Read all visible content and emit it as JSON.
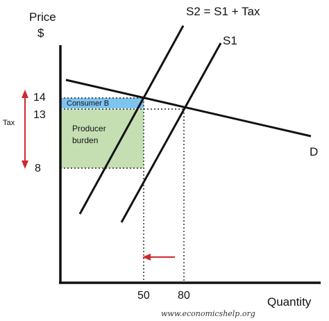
{
  "labels": {
    "y_axis_title": "Price",
    "y_axis_unit": "$",
    "x_axis_title": "Quantity",
    "curve_s2": "S2 = S1 + Tax",
    "curve_s1": "S1",
    "curve_d": "D",
    "tax": "Tax",
    "consumer_burden": "Consumer B",
    "producer_burden_line1": "Producer",
    "producer_burden_line2": "burden",
    "watermark": "www.economicshelp.org"
  },
  "price_ticks": [
    "14",
    "13",
    "8"
  ],
  "quantity_ticks": [
    "50",
    "80"
  ],
  "colors": {
    "consumer_burden_fill": "#7fc3ef",
    "producer_burden_fill": "#c5dfb3",
    "tax_arrow": "#d0282f",
    "quantity_arrow": "#d0282f",
    "curves": "#111111"
  },
  "values": {
    "price_with_tax": 14,
    "equilibrium_price": 13,
    "price_received_by_producer": 8,
    "quantity_with_tax": 50,
    "equilibrium_quantity": 80
  }
}
